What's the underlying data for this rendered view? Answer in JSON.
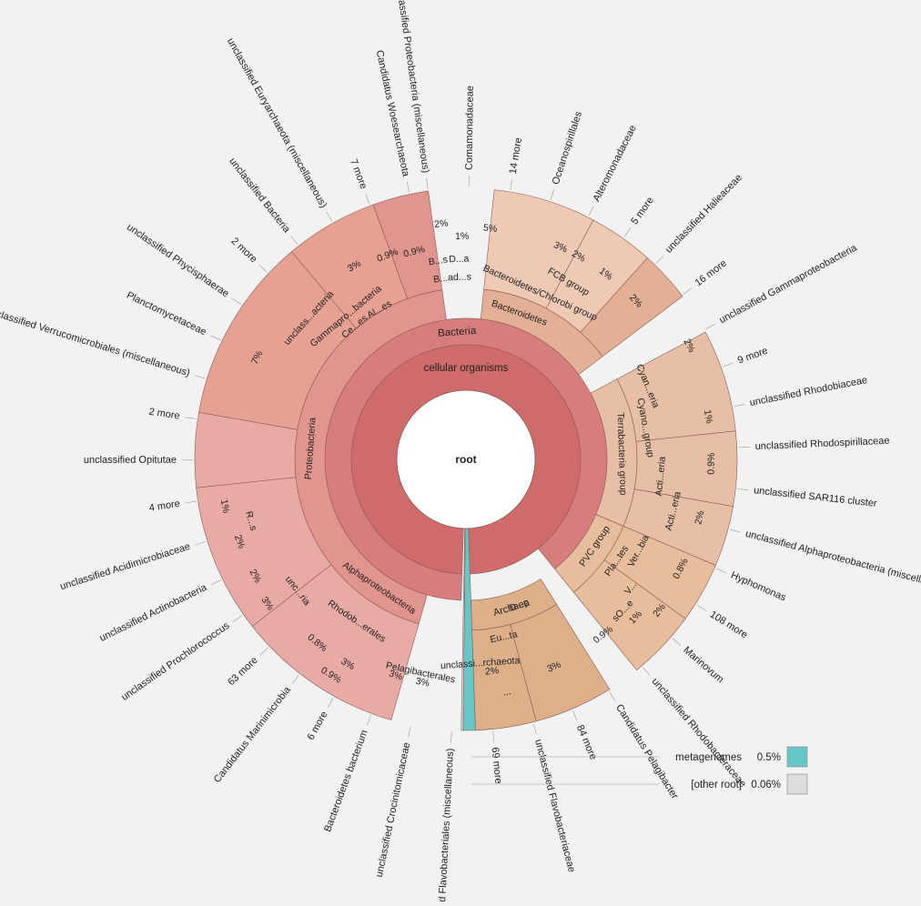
{
  "chart_data": {
    "type": "sunburst",
    "center_label": "root",
    "colors": {
      "background": "#f2f2f2",
      "root_ring": "#d06b6b",
      "bacteria": "#d77d7d",
      "proteobacteria": "#e2948f",
      "alphaproteobacteria": "#e8aaa4",
      "gammaproteobacteria": "#e6a192",
      "bacteroidetes": "#e3b095",
      "bacteroidetes_leaf": "#eec9b4",
      "terrabacteria": "#e6bfa6",
      "pvc": "#e8bd9b",
      "archaea": "#ddb08a",
      "metagenomes": "#67c7c7",
      "other_root": "#dddddd",
      "stroke": "#8a5a55"
    },
    "rings": [
      {
        "level": 1,
        "label": "cellular organisms"
      },
      {
        "level": 2,
        "label": "Bacteria"
      },
      {
        "level": 2,
        "label": "Archaea"
      }
    ],
    "segment_labels": [
      "Proteobacteria",
      "Alphaproteobacteria",
      "Rhodob...erales",
      "Pelagibacterales",
      "Gammapro...bacteria",
      "unclass...acteria",
      "Ce...es",
      "Al...es",
      "unc...ria",
      "R...s",
      "B...s",
      "D...a",
      "B...",
      "ad...s",
      "Bacteroidetes",
      "Bacteroidetes/Chlorobi group",
      "FCB group",
      "Terrabacteria group",
      "Cyano...group",
      "Cyan...eria",
      "Acti...eria",
      "Acti...eria",
      "PVC group",
      "Pla...tes",
      "Ver...bia",
      "V...",
      "sO...e",
      "D...p",
      "Eu...ta",
      "unclassi...rchaeota",
      "..."
    ],
    "percent_labels": [
      "7%",
      "3%",
      "1%",
      "2%",
      "2%",
      "3%",
      "0.8%",
      "0.9%",
      "3%",
      "3%",
      "3%",
      "0.9%",
      "0.9%",
      "2%",
      "1%",
      "5%",
      "3%",
      "2%",
      "1%",
      "2%",
      "2%",
      "1%",
      "0.9%",
      "2%",
      "0.8%",
      "2%",
      "1%",
      "0.9%",
      "3%",
      "2%"
    ],
    "outer_labels": [
      "unclassified Proteobacteria (miscellaneous)",
      "Comamonadaceae",
      "14 more",
      "Oceanospirillales",
      "Alteromonadaceae",
      "5 more",
      "unclassified Halieaceae",
      "16 more",
      "unclassified Gammaproteobacteria",
      "9 more",
      "unclassified Rhodobiaceae",
      "unclassified Rhodospirillaceae",
      "unclassified SAR116 cluster",
      "unclassified Alphaproteobacteria (miscellaneous)",
      "Hyphomonas",
      "108 more",
      "Marinovum",
      "unclassified Rhodobacteraceae",
      "Candidatus Pelagibacter",
      "84 more",
      "unclassified Flavobacteriaceae",
      "69 more",
      "unclassified Flavobacteriales (miscellaneous)",
      "unclassified Crocinitomicaceae",
      "Bacteroidetes bacterium",
      "6 more",
      "Candidatus Marinimicrobia",
      "63 more",
      "unclassified Prochlorococcus",
      "unclassified Actinobacteria",
      "unclassified Acidimicrobiaceae",
      "4 more",
      "unclassified Opitutae",
      "2 more",
      "unclassified Verrucomicrobiales (miscellaneous)",
      "Planctomycetaceae",
      "unclassified Phycisphaerae",
      "2 more",
      "unclassified Bacteria",
      "unclassified Euryarchaeota (miscellaneous)",
      "7 more",
      "Candidatus Woesearchaeota"
    ],
    "legend": [
      {
        "label": "metagenomes",
        "value": "0.5%",
        "color": "#67c7c7"
      },
      {
        "label": "[other root]",
        "value": "0.06%",
        "color": "#dddddd"
      }
    ]
  }
}
